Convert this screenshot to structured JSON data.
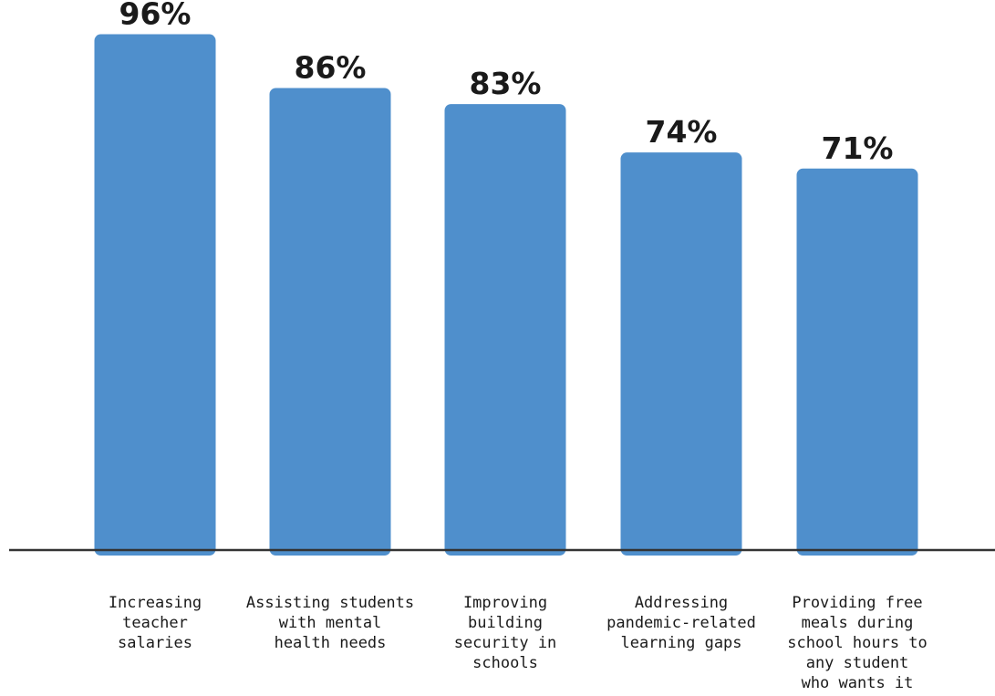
{
  "chart_data": {
    "type": "bar",
    "categories": [
      "Increasing teacher salaries",
      "Assisting students with mental health needs",
      "Improving building security in schools",
      "Addressing pandemic-related learning gaps",
      "Providing free meals during school hours to any student who wants it"
    ],
    "category_lines": [
      [
        "Increasing",
        "teacher",
        "salaries"
      ],
      [
        "Assisting students",
        "with mental",
        "health needs"
      ],
      [
        "Improving",
        "building",
        "security in",
        "schools"
      ],
      [
        "Addressing",
        "pandemic-related",
        "learning gaps"
      ],
      [
        "Providing free",
        "meals during",
        "school hours to",
        "any student",
        "who wants it"
      ]
    ],
    "values": [
      96,
      86,
      83,
      74,
      71
    ],
    "value_labels": [
      "96%",
      "86%",
      "83%",
      "74%",
      "71%"
    ],
    "ylim": [
      0,
      100
    ],
    "bar_color": "#4f8fcc",
    "axis_color": "#333333",
    "grid": false,
    "legend": "none",
    "title": "",
    "xlabel": "",
    "ylabel": ""
  }
}
